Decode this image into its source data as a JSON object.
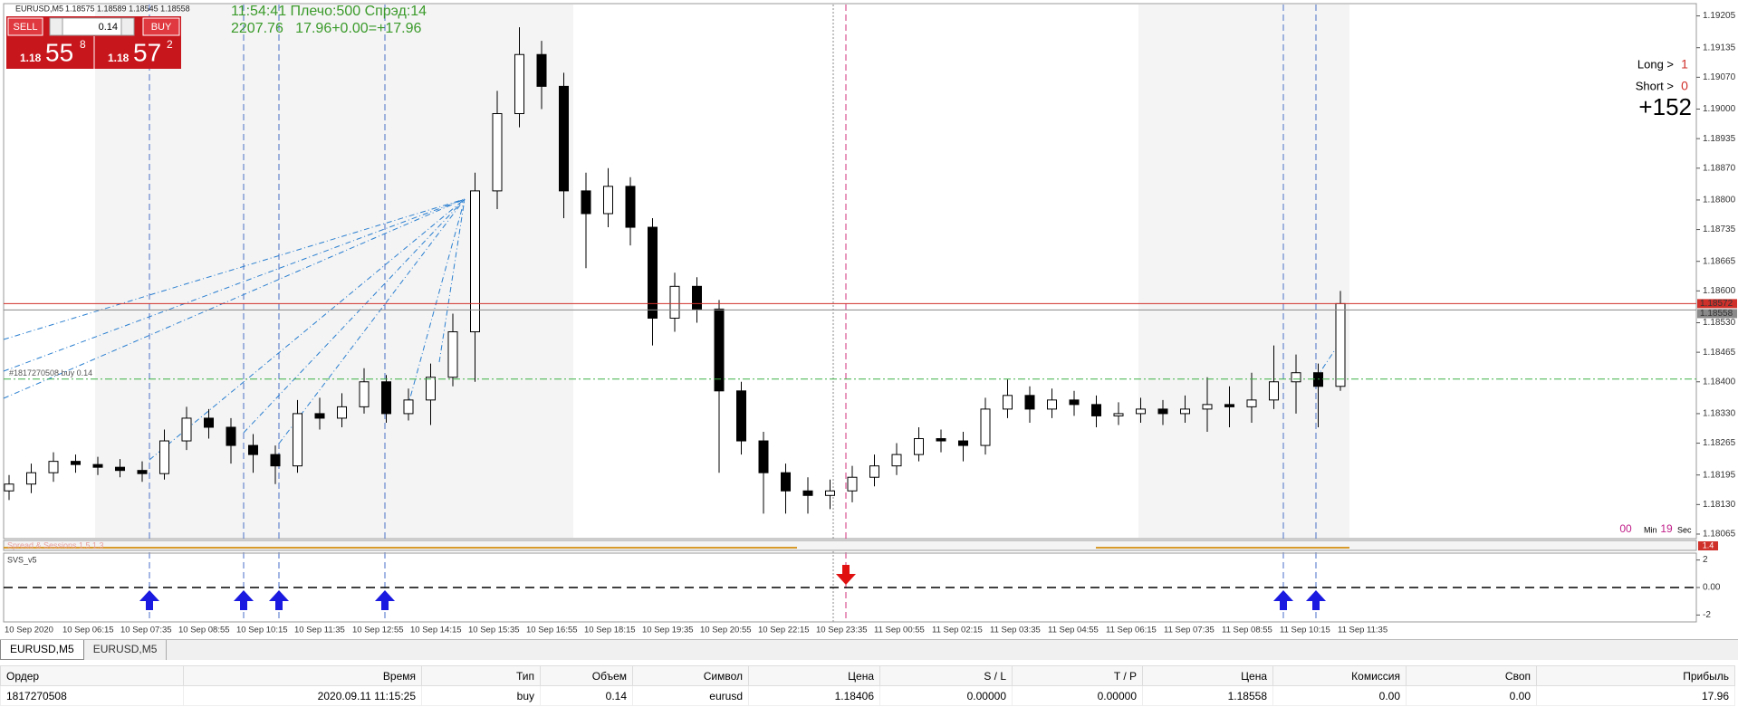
{
  "header": {
    "symbol": "EURUSD,M5",
    "quote": "1.18575 1.18589 1.18545 1.18558"
  },
  "trade_panel": {
    "sell": "SELL",
    "buy": "BUY",
    "lot": "0.14",
    "sell_big": "1.18",
    "sell_digits": "55",
    "sell_pip": "8",
    "buy_big": "1.18",
    "buy_digits": "57",
    "buy_pip": "2"
  },
  "info": {
    "line1": "11:54:41 Плечо:500 Спрэд:14",
    "line2": "2207.76   17.96+0.00=+17.96"
  },
  "stats": {
    "long_label": "Long >",
    "long": "1",
    "short_label": "Short >",
    "short": "0",
    "total": "+152"
  },
  "timer": {
    "min": "00",
    "min_label": "Min",
    "sec": "19",
    "sec_label": "Sec"
  },
  "chart_data": [
    {
      "type": "candlestick",
      "ylim": [
        1.18055,
        1.19232
      ],
      "yticks": [
        1.19205,
        1.19135,
        {
          "value": 1.1907,
          "label": "1.19070"
        },
        {
          "value": 1.19,
          "label": "1.19000"
        },
        1.18935,
        {
          "value": 1.1887,
          "label": "1.18870"
        },
        {
          "value": 1.188,
          "label": "1.18800"
        },
        1.18735,
        1.18665,
        {
          "value": 1.186,
          "label": "1.18600"
        },
        {
          "value": 1.1853,
          "label": "1.18530"
        },
        1.18465,
        {
          "value": 1.184,
          "label": "1.18400"
        },
        {
          "value": 1.1833,
          "label": "1.18330"
        },
        1.18265,
        1.18195,
        {
          "value": 1.1813,
          "label": "1.18130"
        },
        1.18065
      ],
      "time_labels": [
        "10 Sep 2020",
        "10 Sep 06:15",
        "10 Sep 07:35",
        "10 Sep 08:55",
        "10 Sep 10:15",
        "10 Sep 11:35",
        "10 Sep 12:55",
        "10 Sep 14:15",
        "10 Sep 15:35",
        "10 Sep 16:55",
        "10 Sep 18:15",
        "10 Sep 19:35",
        "10 Sep 20:55",
        "10 Sep 22:15",
        "10 Sep 23:35",
        "11 Sep 00:55",
        "11 Sep 02:15",
        "11 Sep 03:35",
        "11 Sep 04:55",
        "11 Sep 06:15",
        "11 Sep 07:35",
        "11 Sep 08:55",
        "11 Sep 10:15",
        "11 Sep 11:35"
      ],
      "series": [
        {
          "color": "#000000",
          "open": [
            1.1816,
            1.18175,
            1.182,
            1.18225,
            1.18218,
            1.18212,
            1.18205,
            1.18198,
            1.1827,
            1.1832,
            1.183,
            1.1826,
            1.1824,
            1.18215,
            1.1833,
            1.1832,
            1.18345,
            1.184,
            1.1833,
            1.1836,
            1.1841,
            1.1851,
            1.1882,
            1.1899,
            1.1912,
            1.1905,
            1.1882,
            1.1877,
            1.1883,
            1.1874,
            1.1854,
            1.1861,
            1.1856,
            1.1838,
            1.1827,
            1.182,
            1.1816,
            1.1815,
            1.1816,
            1.1819,
            1.18215,
            1.1824,
            1.18275,
            1.1827,
            1.1826,
            1.1834,
            1.1837,
            1.1834,
            1.1836,
            1.1835,
            1.18325,
            1.1833,
            1.1834,
            1.1833,
            1.1834,
            1.1835,
            1.18345,
            1.1836,
            1.184,
            1.1842,
            1.1839
          ],
          "high": [
            1.18195,
            1.1822,
            1.18245,
            1.1824,
            1.18235,
            1.1823,
            1.18225,
            1.18295,
            1.18345,
            1.1834,
            1.1832,
            1.18285,
            1.1826,
            1.1836,
            1.18365,
            1.18375,
            1.1843,
            1.18415,
            1.18385,
            1.1844,
            1.1855,
            1.1886,
            1.1904,
            1.1918,
            1.1915,
            1.1908,
            1.1886,
            1.1887,
            1.1885,
            1.1876,
            1.1864,
            1.1863,
            1.1858,
            1.184,
            1.1829,
            1.1822,
            1.1819,
            1.18185,
            1.18215,
            1.1824,
            1.18265,
            1.183,
            1.18295,
            1.1829,
            1.18365,
            1.18405,
            1.1839,
            1.18385,
            1.1838,
            1.1837,
            1.18355,
            1.18365,
            1.1836,
            1.1837,
            1.1841,
            1.1839,
            1.1842,
            1.1848,
            1.1846,
            1.1844,
            1.186
          ],
          "low": [
            1.1814,
            1.18155,
            1.1818,
            1.182,
            1.18195,
            1.1819,
            1.1818,
            1.18185,
            1.1825,
            1.18275,
            1.1822,
            1.182,
            1.18175,
            1.182,
            1.18295,
            1.183,
            1.1833,
            1.1831,
            1.18315,
            1.18305,
            1.1839,
            1.184,
            1.1878,
            1.1896,
            1.19,
            1.1876,
            1.1865,
            1.1874,
            1.187,
            1.1848,
            1.1851,
            1.1853,
            1.182,
            1.1824,
            1.1811,
            1.1811,
            1.1811,
            1.1812,
            1.18135,
            1.1817,
            1.18195,
            1.18225,
            1.18245,
            1.18225,
            1.1824,
            1.1832,
            1.1831,
            1.1832,
            1.18325,
            1.183,
            1.18305,
            1.1831,
            1.18305,
            1.1831,
            1.1829,
            1.183,
            1.1831,
            1.1834,
            1.1833,
            1.183,
            1.1838
          ],
          "close": [
            1.18175,
            1.182,
            1.18225,
            1.18218,
            1.18212,
            1.18205,
            1.18198,
            1.1827,
            1.1832,
            1.183,
            1.1826,
            1.1824,
            1.18215,
            1.1833,
            1.1832,
            1.18345,
            1.184,
            1.1833,
            1.1836,
            1.1841,
            1.1851,
            1.1882,
            1.1899,
            1.1912,
            1.1905,
            1.1882,
            1.1877,
            1.1883,
            1.1874,
            1.1854,
            1.1861,
            1.1856,
            1.1838,
            1.1827,
            1.182,
            1.1816,
            1.1815,
            1.1816,
            1.1819,
            1.18215,
            1.1824,
            1.18275,
            1.1827,
            1.1826,
            1.1834,
            1.1837,
            1.1834,
            1.1836,
            1.1835,
            1.18325,
            1.1833,
            1.1834,
            1.1833,
            1.1834,
            1.1835,
            1.18345,
            1.1836,
            1.184,
            1.1842,
            1.1839,
            1.18572
          ]
        }
      ],
      "price_lines": [
        {
          "value": 1.18572,
          "color": "#d0302a"
        },
        {
          "value": 1.18558,
          "color": "#8a8a8a"
        }
      ],
      "order_line": {
        "value": 1.18406,
        "label": "#1817270508 buy 0.14",
        "color": "#3cb043"
      }
    },
    {
      "type": "indicator",
      "title": "SVS_v5",
      "ylim": [
        -2.5,
        2.5
      ],
      "yticks": [
        2,
        {
          "value": 0,
          "label": "0.00"
        },
        -2
      ]
    }
  ],
  "sessions": {
    "title": "Spread & Sessions 1.5 1.3",
    "value": "1.4"
  },
  "tabs": [
    "EURUSD,M5",
    "EURUSD,M5"
  ],
  "table": {
    "headers": [
      "Ордер",
      "Время",
      "Тип",
      "Объем",
      "Символ",
      "Цена",
      "S / L",
      "T / P",
      "Цена",
      "Комиссия",
      "Своп",
      "Прибыль"
    ],
    "rows": [
      [
        "1817270508",
        "2020.09.11 11:15:25",
        "buy",
        "0.14",
        "eurusd",
        "1.18406",
        "0.00000",
        "0.00000",
        "1.18558",
        "0.00",
        "0.00",
        "17.96"
      ]
    ]
  }
}
